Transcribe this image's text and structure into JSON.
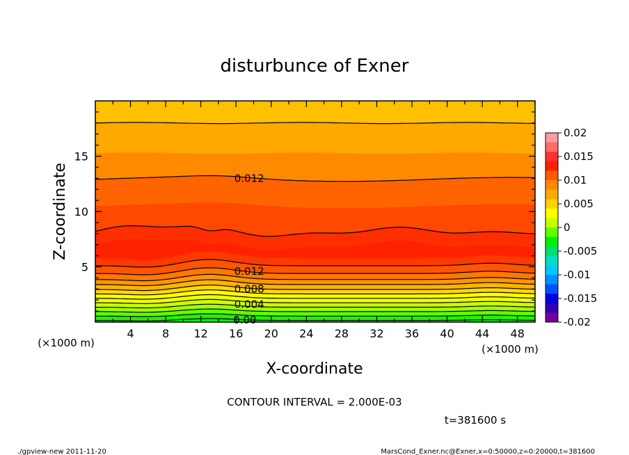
{
  "chart_data": {
    "type": "contour",
    "title": "disturbunce of Exner",
    "xlabel": "X-coordinate",
    "ylabel": "Z-coordinate",
    "x_unit": "(×1000 m)",
    "x_unit_right": "(×1000 m)",
    "xlim": [
      0,
      50
    ],
    "ylim": [
      0,
      20
    ],
    "x_ticks": [
      4,
      8,
      12,
      16,
      20,
      24,
      28,
      32,
      36,
      40,
      44,
      48
    ],
    "y_ticks": [
      5,
      10,
      15
    ],
    "contour_interval_text": "CONTOUR INTERVAL = 2.000E-03",
    "time_text": "t=381600 s",
    "colorbar": {
      "labels": [
        "0.02",
        "0.015",
        "0.01",
        "0.005",
        "0",
        "-0.005",
        "-0.01",
        "-0.015",
        "-0.02"
      ],
      "levels": [
        0.02,
        0.015,
        0.01,
        0.005,
        0,
        -0.005,
        -0.01,
        -0.015,
        -0.02
      ],
      "colors": [
        "#ff9aa0",
        "#ff6a6a",
        "#ff3030",
        "#ff2000",
        "#ff5a00",
        "#ff8a00",
        "#ffaa00",
        "#ffd200",
        "#ffff00",
        "#c8ff00",
        "#60ff00",
        "#00f000",
        "#00e070",
        "#00e0c0",
        "#00c8ff",
        "#0090ff",
        "#0050ff",
        "#0000e0",
        "#3000b0",
        "#7000a0"
      ]
    },
    "contour_labels": [
      {
        "text": "0.012",
        "x": 17.5,
        "z": 13.0
      },
      {
        "text": "0.012",
        "x": 17.5,
        "z": 4.6
      },
      {
        "text": "0.008",
        "x": 17.5,
        "z": 3.0
      },
      {
        "text": "0.004",
        "x": 17.5,
        "z": 1.6
      },
      {
        "text": "0.00",
        "x": 17.0,
        "z": 0.2
      }
    ]
  },
  "footer": {
    "left": "./gpview-new   2011-11-20",
    "right": "MarsCond_Exner.nc@Exner,x=0:50000,z=0:20000,t=381600"
  },
  "colors": {
    "frame": "#000000",
    "background": "#ffffff"
  }
}
